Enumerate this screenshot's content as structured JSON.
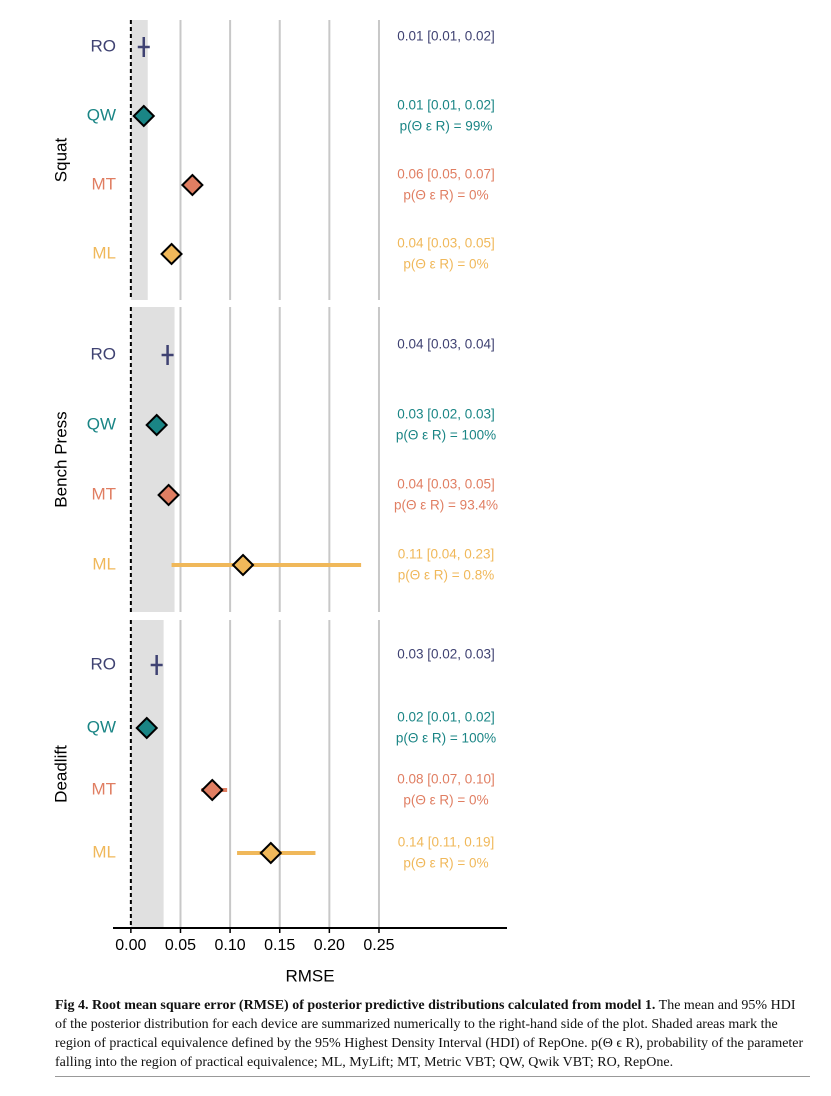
{
  "chart_data": {
    "type": "forest",
    "xlabel": "RMSE",
    "xlim": [
      -0.018,
      0.379
    ],
    "xticks": [
      {
        "value": 0,
        "label": "0.00"
      },
      0.05,
      {
        "value": 0.1,
        "label": "0.10"
      },
      0.15,
      {
        "value": 0.2,
        "label": "0.20"
      },
      0.25
    ],
    "grid": true,
    "rope_color": "#e0e0e0",
    "devices": [
      {
        "name": "RO",
        "color": "#3f4272",
        "marker": "plus"
      },
      {
        "name": "QW",
        "color": "#1a8585",
        "marker": "diamond"
      },
      {
        "name": "MT",
        "color": "#e07e62",
        "marker": "diamond"
      },
      {
        "name": "ML",
        "color": "#f0b85a",
        "marker": "diamond"
      }
    ],
    "panels": [
      {
        "title": "Squat",
        "rope": [
          0,
          0.017
        ],
        "means": [
          0.013,
          0.013,
          0.062,
          0.041
        ],
        "hdi_low": [
          0.011,
          0.011,
          0.055,
          0.035
        ],
        "hdi_high": [
          0.016,
          0.016,
          0.068,
          0.047
        ],
        "labels": [
          [
            "0.01 [0.01, 0.02]"
          ],
          [
            "0.01 [0.01, 0.02]",
            "p(Θ ε R) = 99%"
          ],
          [
            "0.06 [0.05, 0.07]",
            "p(Θ ε R) = 0%"
          ],
          [
            "0.04 [0.03, 0.05]",
            "p(Θ ε R) = 0%"
          ]
        ]
      },
      {
        "title": "Bench Press",
        "rope": [
          0,
          0.044
        ],
        "means": [
          0.037,
          0.026,
          0.038,
          0.113
        ],
        "hdi_low": [
          0.033,
          0.022,
          0.033,
          0.041
        ],
        "hdi_high": [
          0.041,
          0.03,
          0.045,
          0.232
        ],
        "labels": [
          [
            "0.04 [0.03, 0.04]"
          ],
          [
            "0.03 [0.02, 0.03]",
            "p(Θ ε R) = 100%"
          ],
          [
            "0.04 [0.03, 0.05]",
            "p(Θ ε R) = 93.4%"
          ],
          [
            "0.11 [0.04, 0.23]",
            "p(Θ ε R) = 0.8%"
          ]
        ]
      },
      {
        "title": "Deadlift",
        "rope": [
          0,
          0.033
        ],
        "means": [
          0.026,
          0.016,
          0.082,
          0.141
        ],
        "hdi_low": [
          0.024,
          0.013,
          0.071,
          0.107
        ],
        "hdi_high": [
          0.029,
          0.019,
          0.097,
          0.186
        ],
        "labels": [
          [
            "0.03 [0.02, 0.03]"
          ],
          [
            "0.02 [0.01, 0.02]",
            "p(Θ ε R) = 100%"
          ],
          [
            "0.08 [0.07, 0.10]",
            "p(Θ ε R) = 0%"
          ],
          [
            "0.14 [0.11, 0.19]",
            "p(Θ ε R) = 0%"
          ]
        ]
      }
    ]
  },
  "caption": {
    "bold": "Fig 4. Root mean square error (RMSE) of posterior predictive distributions calculated from model 1.",
    "text": " The mean and 95% HDI of the posterior distribution for each device are summarized numerically to the right-hand side of the plot. Shaded areas mark the region of practical equivalence defined by the 95% Highest Density Interval (HDI) of RepOne. p(Θ ϵ R), probability of the parameter falling into the region of practical equivalence; ML, MyLift; MT, Metric VBT; QW, Qwik VBT; RO, RepOne."
  }
}
